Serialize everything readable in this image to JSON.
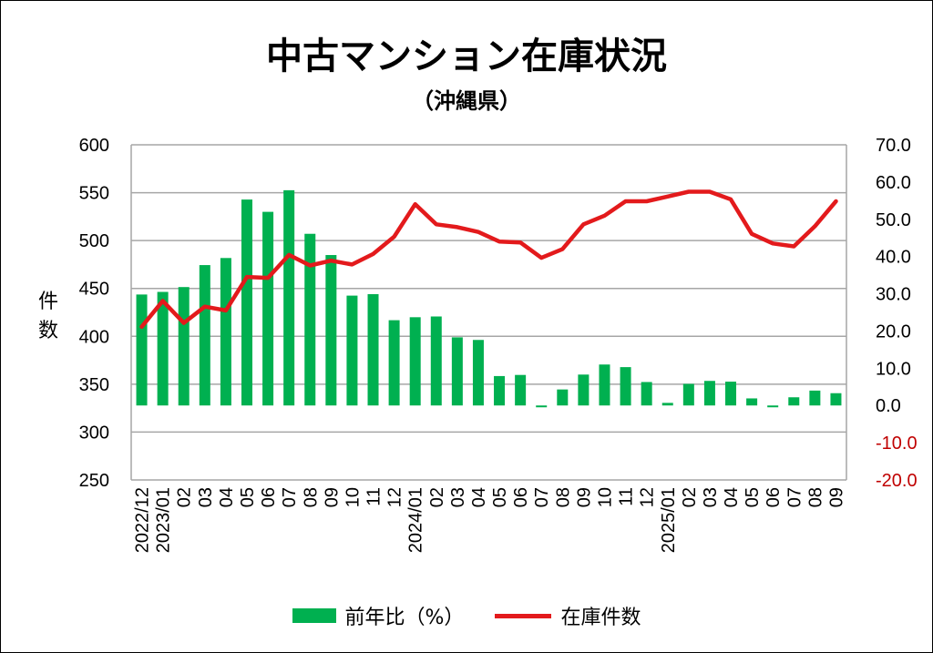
{
  "chart_data": {
    "type": "bar+line",
    "title": "中古マンション在庫状況",
    "subtitle": "（沖縄県）",
    "ylabel": "件数",
    "ylabel_chars": [
      "件",
      "数"
    ],
    "y_left": {
      "min": 250,
      "max": 600,
      "ticks": [
        "600",
        "550",
        "500",
        "450",
        "400",
        "350",
        "300",
        "250"
      ]
    },
    "y_right": {
      "min": -20,
      "max": 70,
      "ticks": [
        "70.0",
        "60.0",
        "50.0",
        "40.0",
        "30.0",
        "20.0",
        "10.0",
        "0.0",
        "-10.0",
        "-20.0"
      ]
    },
    "grid": true,
    "legend_position": "bottom",
    "categories": [
      "2022/12",
      "2023/01",
      "02",
      "03",
      "04",
      "05",
      "06",
      "07",
      "08",
      "09",
      "10",
      "11",
      "12",
      "2024/01",
      "02",
      "03",
      "04",
      "05",
      "06",
      "07",
      "08",
      "09",
      "10",
      "11",
      "12",
      "2025/01",
      "02",
      "03",
      "04",
      "05",
      "06",
      "07",
      "08",
      "09"
    ],
    "series": [
      {
        "name": "前年比（%）",
        "axis": "right",
        "kind": "bar",
        "color": "#00b050",
        "values": [
          29.8,
          30.5,
          31.8,
          37.7,
          39.6,
          55.3,
          52.0,
          57.8,
          46.1,
          40.4,
          29.5,
          29.9,
          22.9,
          23.7,
          23.9,
          18.3,
          17.6,
          7.9,
          8.2,
          -0.4,
          4.3,
          8.3,
          11.0,
          10.3,
          6.3,
          0.7,
          5.8,
          6.6,
          6.4,
          1.9,
          -0.3,
          2.2,
          4.0,
          3.3
        ]
      },
      {
        "name": "在庫件数",
        "axis": "left",
        "kind": "line",
        "color": "#e31a1c",
        "values": [
          410,
          437,
          414,
          431,
          427,
          462,
          461,
          485,
          474,
          479,
          475,
          486,
          504,
          538,
          517,
          514,
          509,
          499,
          498,
          482,
          491,
          517,
          526,
          541,
          541,
          546,
          551,
          551,
          543,
          507,
          497,
          494,
          515,
          541
        ]
      }
    ]
  }
}
